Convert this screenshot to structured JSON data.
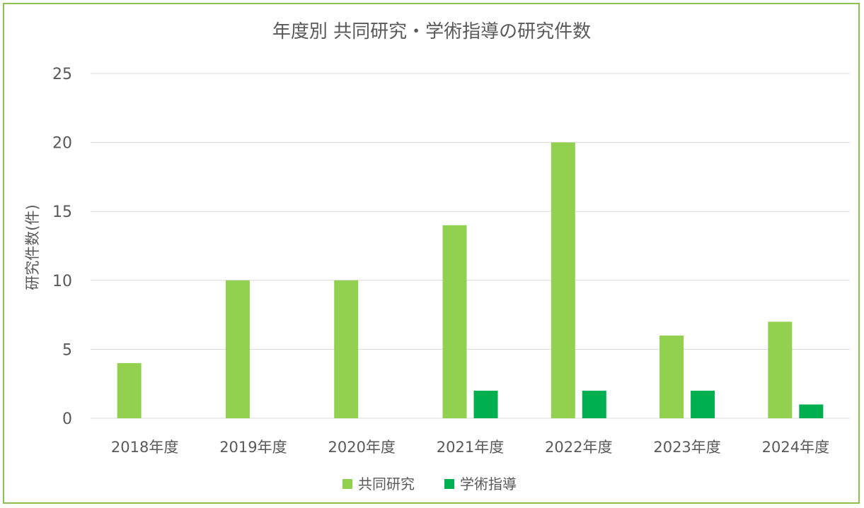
{
  "chart_data": {
    "type": "bar",
    "title": "年度別 共同研究・学術指導の研究件数",
    "ylabel": "研究件数(件)",
    "xlabel": "",
    "categories": [
      "2018年度",
      "2019年度",
      "2020年度",
      "2021年度",
      "2022年度",
      "2023年度",
      "2024年度"
    ],
    "series": [
      {
        "name": "共同研究",
        "values": [
          4,
          10,
          10,
          14,
          20,
          6,
          7
        ],
        "color": "#92d050"
      },
      {
        "name": "学術指導",
        "values": [
          0,
          0,
          0,
          2,
          2,
          2,
          1
        ],
        "color": "#00b050"
      }
    ],
    "ylim": [
      0,
      25
    ],
    "yticks": [
      0,
      5,
      10,
      15,
      20,
      25
    ],
    "grid": true,
    "legend_position": "bottom",
    "frame_color": "#8cc152",
    "gridline_color": "#d9d9d9"
  }
}
